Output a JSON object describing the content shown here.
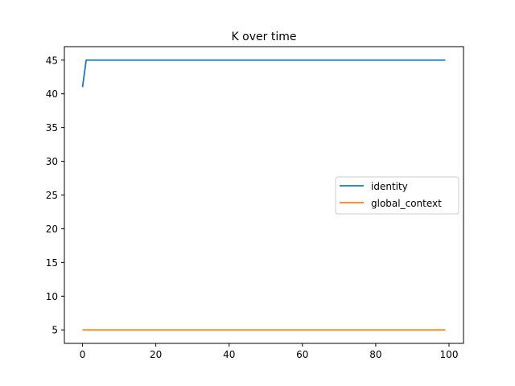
{
  "chart_data": {
    "type": "line",
    "title": "K over time",
    "xlabel": "",
    "ylabel": "",
    "xlim": [
      -4.95,
      103.95
    ],
    "ylim": [
      3,
      47
    ],
    "xticks": [
      0,
      20,
      40,
      60,
      80,
      100
    ],
    "yticks": [
      5,
      10,
      15,
      20,
      25,
      30,
      35,
      40,
      45
    ],
    "grid": false,
    "legend_position": "center-right",
    "series": [
      {
        "name": "identity",
        "color": "#1f77b4",
        "x_start": 0,
        "x_end": 99,
        "first_value": 41,
        "value": 45
      },
      {
        "name": "global_context",
        "color": "#ff7f0e",
        "x_start": 0,
        "x_end": 99,
        "first_value": 5,
        "value": 5
      }
    ]
  }
}
